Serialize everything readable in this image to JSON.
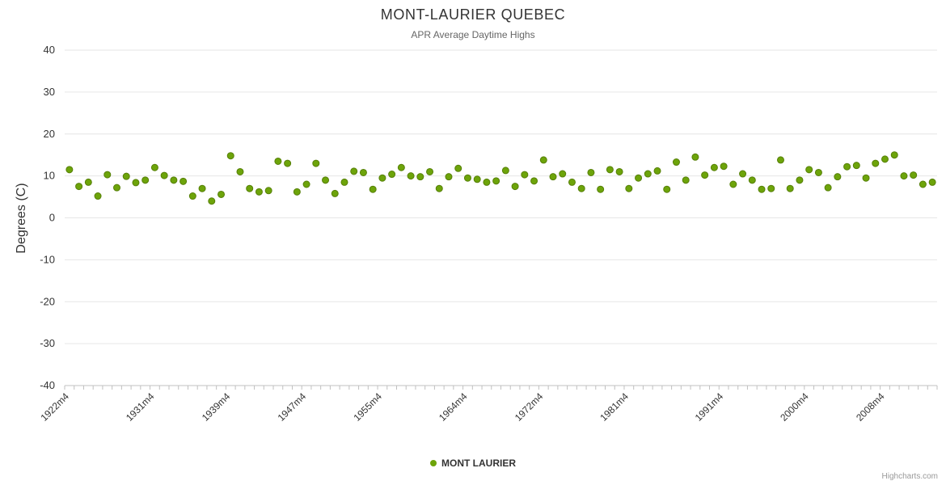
{
  "title": "MONT-LAURIER QUEBEC",
  "subtitle": "APR Average Daytime Highs",
  "credits": "Highcharts.com",
  "legend": {
    "label": "MONT LAURIER"
  },
  "colors": {
    "point": "#6da40a",
    "point_stroke": "#567f08",
    "grid": "#e6e6e6",
    "axis_line": "#c0c0c0",
    "tick": "#c0c0c0",
    "title_text": "#333333",
    "subtitle_text": "#666666",
    "label_text": "#333333",
    "credits_text": "#999999"
  },
  "chart_data": {
    "type": "scatter",
    "title": "MONT-LAURIER QUEBEC",
    "subtitle": "APR Average Daytime Highs",
    "xlabel": "",
    "ylabel": "Degrees (C)",
    "ylim": [
      -40,
      40
    ],
    "y_tick_step": 10,
    "grid": true,
    "legend_position": "bottom",
    "series_name": "MONT LAURIER",
    "x_tick_labels": [
      "1922m4",
      "1931m4",
      "1939m4",
      "1947m4",
      "1955m4",
      "1964m4",
      "1972m4",
      "1981m4",
      "1991m4",
      "2000m4",
      "2008m4"
    ],
    "categories": [
      "1922m4",
      "1923m4",
      "1924m4",
      "1925m4",
      "1926m4",
      "1927m4",
      "1928m4",
      "1929m4",
      "1930m4",
      "1931m4",
      "1932m4",
      "1933m4",
      "1934m4",
      "1935m4",
      "1936m4",
      "1937m4",
      "1938m4",
      "1939m4",
      "1940m4",
      "1941m4",
      "1942m4",
      "1943m4",
      "1944m4",
      "1945m4",
      "1946m4",
      "1947m4",
      "1948m4",
      "1949m4",
      "1950m4",
      "1951m4",
      "1952m4",
      "1953m4",
      "1954m4",
      "1955m4",
      "1956m4",
      "1957m4",
      "1958m4",
      "1959m4",
      "1960m4",
      "1961m4",
      "1962m4",
      "1963m4",
      "1964m4",
      "1965m4",
      "1966m4",
      "1967m4",
      "1968m4",
      "1969m4",
      "1970m4",
      "1971m4",
      "1972m4",
      "1973m4",
      "1974m4",
      "1975m4",
      "1976m4",
      "1977m4",
      "1978m4",
      "1979m4",
      "1980m4",
      "1981m4",
      "1982m4",
      "1983m4",
      "1984m4",
      "1985m4",
      "1986m4",
      "1987m4",
      "1988m4",
      "1989m4",
      "1990m4",
      "1991m4",
      "1992m4",
      "1993m4",
      "1994m4",
      "1995m4",
      "1996m4",
      "1997m4",
      "1998m4",
      "1999m4",
      "2000m4",
      "2001m4",
      "2002m4",
      "2003m4",
      "2004m4",
      "2005m4",
      "2006m4",
      "2007m4",
      "2008m4",
      "2009m4",
      "2010m4",
      "2011m4",
      "2012m4",
      "2013m4"
    ],
    "values": [
      11.5,
      7.5,
      8.5,
      5.2,
      10.3,
      7.2,
      9.9,
      8.4,
      9.0,
      12.0,
      10.1,
      9.0,
      8.7,
      5.2,
      7.0,
      4.0,
      5.6,
      14.8,
      11.0,
      7.0,
      6.2,
      6.5,
      13.5,
      13.0,
      6.2,
      8.0,
      13.0,
      9.0,
      5.8,
      8.5,
      11.1,
      10.8,
      6.8,
      9.5,
      10.4,
      12.0,
      10.0,
      9.8,
      11.0,
      7.0,
      9.8,
      11.8,
      9.5,
      9.2,
      8.5,
      8.8,
      11.3,
      7.5,
      10.3,
      8.8,
      13.8,
      9.8,
      10.5,
      8.5,
      7.0,
      10.8,
      6.8,
      11.5,
      11.0,
      7.0,
      9.5,
      10.5,
      11.2,
      6.8,
      13.3,
      9.0,
      14.5,
      10.2,
      12.0,
      12.3,
      8.0,
      10.5,
      9.0,
      6.8,
      7.0,
      13.8,
      7.0,
      9.0,
      11.5,
      10.8,
      7.2,
      9.8,
      12.2,
      12.5,
      9.5,
      13.0,
      14.0,
      15.0,
      10.0,
      10.2,
      8.0,
      8.5
    ]
  }
}
